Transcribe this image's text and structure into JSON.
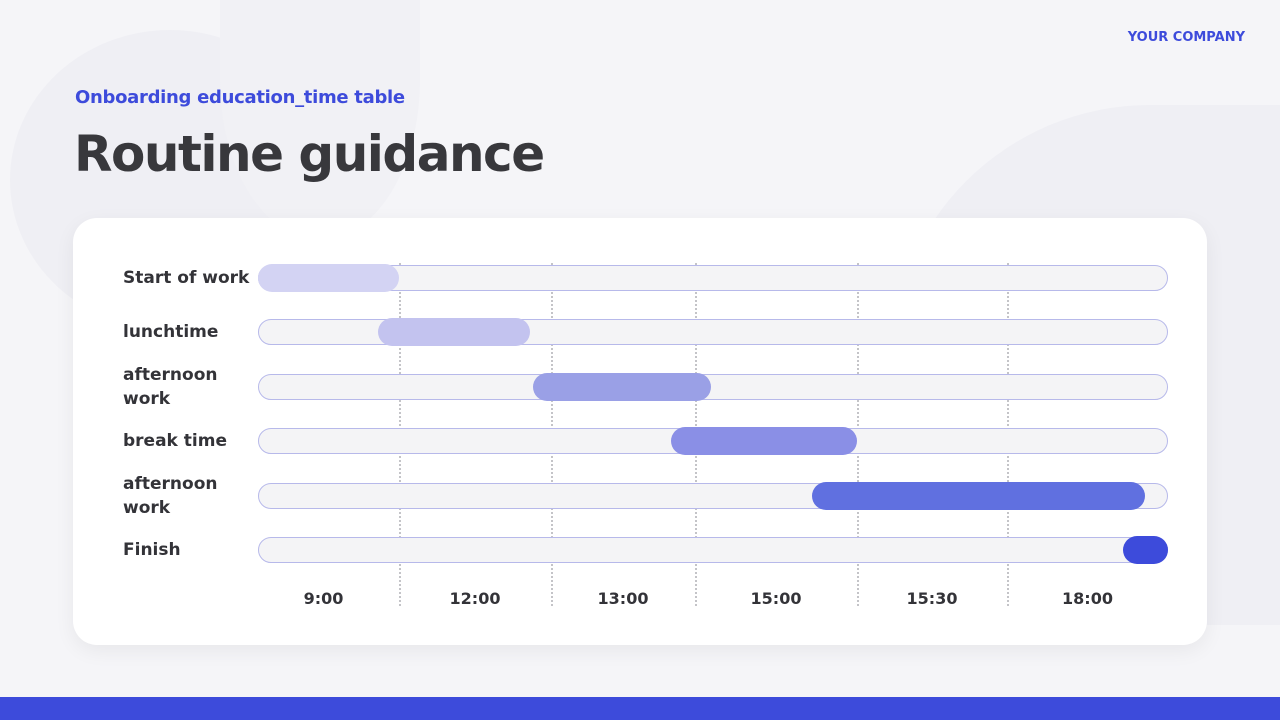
{
  "header": {
    "company": "YOUR COMPANY",
    "subtitle": "Onboarding education_time table",
    "title": "Routine guidance"
  },
  "chart_data": {
    "type": "gantt",
    "title": "",
    "categories": [
      "Start of work",
      "lunchtime",
      "afternoon work",
      "break time",
      "afternoon work",
      "Finish"
    ],
    "x_ticks": [
      "9:00",
      "12:00",
      "13:00",
      "15:00",
      "15:30",
      "18:00"
    ],
    "x_unit": "slot index (0-6, one slot per tick column)",
    "grid": "dotted vertical",
    "bars": [
      {
        "start": 0,
        "end": 1,
        "color": "#d3d3f3"
      },
      {
        "start": 0.85,
        "end": 1.86,
        "color": "#c3c3ef"
      },
      {
        "start": 1.88,
        "end": 3.1,
        "color": "#9aa0e6"
      },
      {
        "start": 2.83,
        "end": 4.0,
        "color": "#8a8fe6"
      },
      {
        "start": 3.72,
        "end": 5.86,
        "color": "#6070e0"
      },
      {
        "start": 5.72,
        "end": 6,
        "color": "#3d4bdb"
      }
    ]
  },
  "colors": {
    "accent": "#3d4bdb",
    "track": "#f4f4f6"
  }
}
